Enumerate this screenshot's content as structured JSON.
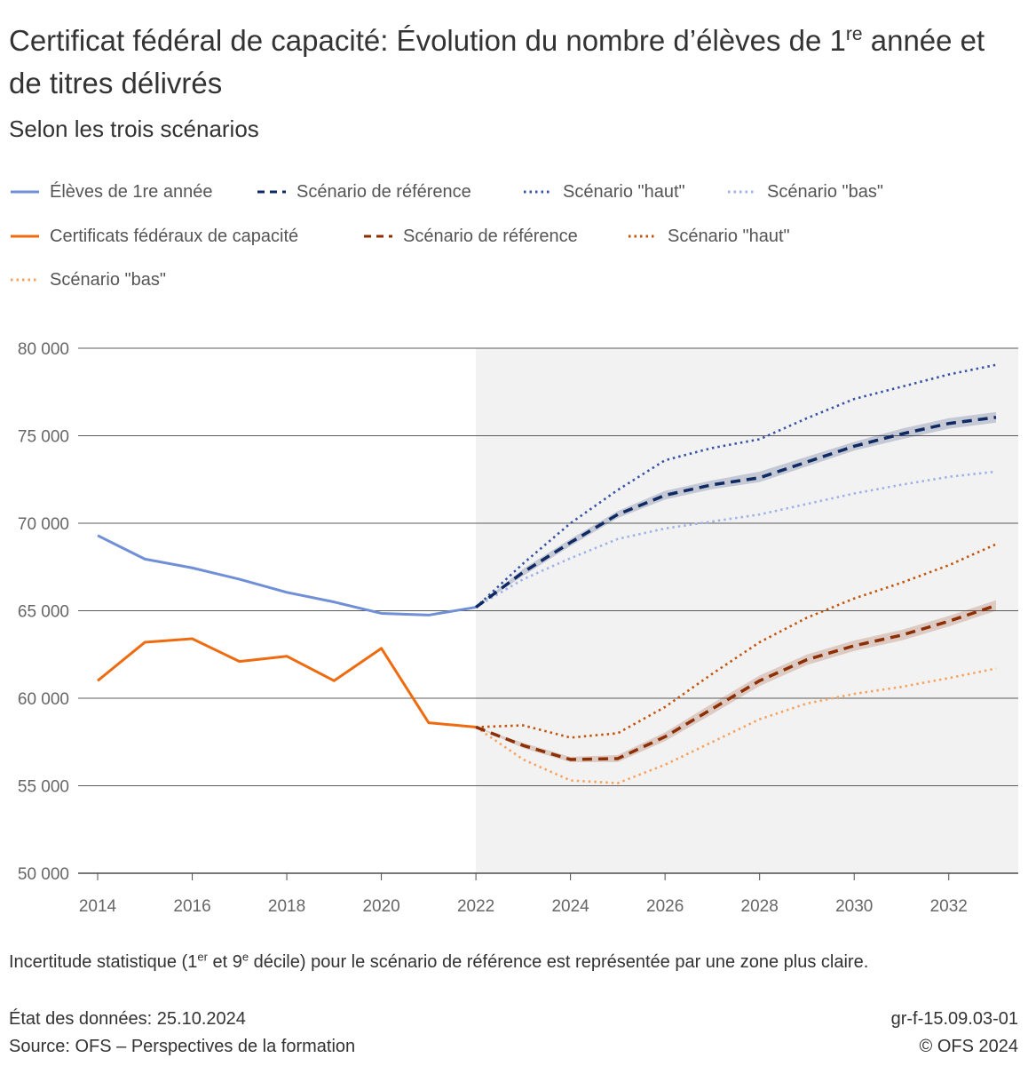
{
  "header": {
    "title_main": "Certificat fédéral de capacité: Évolution du nombre d’élèves de 1",
    "title_sup": "re",
    "title_rest": " année et de titres délivrés",
    "subtitle": "Selon les trois scénarios"
  },
  "legend": [
    {
      "label": "Élèves de 1re année",
      "color": "#6f8fd6",
      "style": "solid"
    },
    {
      "label": "Scénario de référence",
      "color": "#0f2a63",
      "style": "dashed"
    },
    {
      "label": "Scénario \"haut\"",
      "color": "#3853a6",
      "style": "dotted"
    },
    {
      "label": "Scénario \"bas\"",
      "color": "#9fb3e6",
      "style": "dotted"
    },
    {
      "label": "Certificats fédéraux de capacité",
      "color": "#ee6b0f",
      "style": "solid"
    },
    {
      "label": "Scénario de référence",
      "color": "#8c2f05",
      "style": "dashed"
    },
    {
      "label": "Scénario \"haut\"",
      "color": "#c4540c",
      "style": "dotted"
    },
    {
      "label": "Scénario \"bas\"",
      "color": "#f5a460",
      "style": "dotted"
    }
  ],
  "note": {
    "part1": "Incertitude statistique (1",
    "sup1": "er",
    "part2": " et 9",
    "sup2": "e",
    "part3": " décile) pour le scénario de référence est représentée par une zone plus claire."
  },
  "footer": {
    "data_state": "État des données: 25.10.2024",
    "source": "Source: OFS – Perspectives de la formation",
    "code": "gr-f-15.09.03-01",
    "copyright": "© OFS 2024"
  },
  "chart_data": {
    "type": "line",
    "xlim": [
      2014,
      2033
    ],
    "ylim": [
      50000,
      80000
    ],
    "x_ticks": [
      2014,
      2016,
      2018,
      2020,
      2022,
      2024,
      2026,
      2028,
      2030,
      2032
    ],
    "y_ticks": [
      50000,
      55000,
      60000,
      65000,
      70000,
      75000,
      80000
    ],
    "y_tick_labels": [
      "50 000",
      "55 000",
      "60 000",
      "65 000",
      "70 000",
      "75 000",
      "80 000"
    ],
    "projection_start": 2022,
    "grid": "horizontal",
    "legend_position": "top",
    "series": [
      {
        "group": "eleves",
        "kind": "historical",
        "color": "#6f8fd6",
        "style": "solid",
        "x": [
          2014,
          2015,
          2016,
          2017,
          2018,
          2019,
          2020,
          2021,
          2022
        ],
        "y": [
          69300,
          67950,
          67450,
          66800,
          66050,
          65500,
          64850,
          64750,
          65200
        ]
      },
      {
        "group": "eleves",
        "kind": "reference",
        "color": "#0f2a63",
        "style": "dashed",
        "x": [
          2022,
          2023,
          2024,
          2025,
          2026,
          2027,
          2028,
          2029,
          2030,
          2031,
          2032,
          2033
        ],
        "y": [
          65200,
          67200,
          68900,
          70500,
          71600,
          72200,
          72600,
          73500,
          74400,
          75100,
          75700,
          76050
        ],
        "band_low": [
          65200,
          67000,
          68700,
          70300,
          71350,
          71950,
          72350,
          73250,
          74150,
          74800,
          75400,
          75750
        ],
        "band_high": [
          65200,
          67400,
          69100,
          70700,
          71850,
          72450,
          72950,
          73800,
          74650,
          75400,
          76000,
          76350
        ]
      },
      {
        "group": "eleves",
        "kind": "haut",
        "color": "#3853a6",
        "style": "dotted",
        "x": [
          2022,
          2023,
          2024,
          2025,
          2026,
          2027,
          2028,
          2029,
          2030,
          2031,
          2032,
          2033
        ],
        "y": [
          65200,
          67700,
          70000,
          71900,
          73600,
          74300,
          74800,
          76000,
          77100,
          77800,
          78500,
          79050
        ]
      },
      {
        "group": "eleves",
        "kind": "bas",
        "color": "#9fb3e6",
        "style": "dotted",
        "x": [
          2022,
          2023,
          2024,
          2025,
          2026,
          2027,
          2028,
          2029,
          2030,
          2031,
          2032,
          2033
        ],
        "y": [
          65200,
          66800,
          68000,
          69100,
          69700,
          70100,
          70500,
          71100,
          71700,
          72200,
          72650,
          72950
        ]
      },
      {
        "group": "cfc",
        "kind": "historical",
        "color": "#ee6b0f",
        "style": "solid",
        "x": [
          2014,
          2015,
          2016,
          2017,
          2018,
          2019,
          2020,
          2021,
          2022
        ],
        "y": [
          61000,
          63200,
          63400,
          62100,
          62400,
          61000,
          62850,
          58600,
          58350
        ]
      },
      {
        "group": "cfc",
        "kind": "reference",
        "color": "#8c2f05",
        "style": "dashed",
        "x": [
          2022,
          2023,
          2024,
          2025,
          2026,
          2027,
          2028,
          2029,
          2030,
          2031,
          2032,
          2033
        ],
        "y": [
          58350,
          57300,
          56500,
          56550,
          57800,
          59400,
          61000,
          62200,
          63000,
          63600,
          64400,
          65300
        ],
        "band_low": [
          58350,
          57150,
          56350,
          56350,
          57550,
          59100,
          60700,
          61900,
          62700,
          63300,
          64100,
          65000
        ],
        "band_high": [
          58350,
          57450,
          56650,
          56750,
          58050,
          59700,
          61300,
          62500,
          63300,
          63900,
          64700,
          65600
        ]
      },
      {
        "group": "cfc",
        "kind": "haut",
        "color": "#c4540c",
        "style": "dotted",
        "x": [
          2022,
          2023,
          2024,
          2025,
          2026,
          2027,
          2028,
          2029,
          2030,
          2031,
          2032,
          2033
        ],
        "y": [
          58350,
          58450,
          57750,
          58000,
          59500,
          61400,
          63200,
          64600,
          65700,
          66600,
          67600,
          68800
        ]
      },
      {
        "group": "cfc",
        "kind": "bas",
        "color": "#f5a460",
        "style": "dotted",
        "x": [
          2022,
          2023,
          2024,
          2025,
          2026,
          2027,
          2028,
          2029,
          2030,
          2031,
          2032,
          2033
        ],
        "y": [
          58350,
          56500,
          55300,
          55150,
          56200,
          57500,
          58800,
          59700,
          60250,
          60650,
          61150,
          61700
        ]
      }
    ]
  }
}
